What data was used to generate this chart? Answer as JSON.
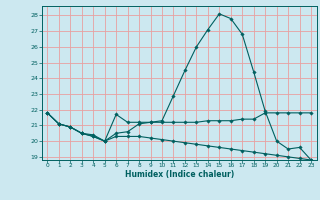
{
  "xlabel": "Humidex (Indice chaleur)",
  "bg_color": "#cce8f0",
  "grid_color": "#e8a0a0",
  "line_color": "#006060",
  "xlim": [
    -0.5,
    23.5
  ],
  "ylim": [
    18.8,
    28.6
  ],
  "yticks": [
    19,
    20,
    21,
    22,
    23,
    24,
    25,
    26,
    27,
    28
  ],
  "xticks": [
    0,
    1,
    2,
    3,
    4,
    5,
    6,
    7,
    8,
    9,
    10,
    11,
    12,
    13,
    14,
    15,
    16,
    17,
    18,
    19,
    20,
    21,
    22,
    23
  ],
  "line1_x": [
    0,
    1,
    2,
    3,
    4,
    5,
    6,
    7,
    8,
    9,
    10,
    11,
    12,
    13,
    14,
    15,
    16,
    17,
    18,
    19,
    20,
    21,
    22,
    23
  ],
  "line1_y": [
    21.8,
    21.1,
    20.9,
    20.5,
    20.4,
    20.0,
    21.7,
    21.2,
    21.2,
    21.2,
    21.3,
    22.9,
    24.5,
    26.0,
    27.1,
    28.1,
    27.8,
    26.8,
    24.4,
    21.9,
    20.0,
    19.5,
    19.6,
    18.8
  ],
  "line2_x": [
    0,
    1,
    2,
    3,
    4,
    5,
    6,
    7,
    8,
    9,
    10,
    11,
    12,
    13,
    14,
    15,
    16,
    17,
    18,
    19,
    20,
    21,
    22,
    23
  ],
  "line2_y": [
    21.8,
    21.1,
    20.9,
    20.5,
    20.3,
    20.0,
    20.5,
    20.6,
    21.1,
    21.2,
    21.2,
    21.2,
    21.2,
    21.2,
    21.3,
    21.3,
    21.3,
    21.4,
    21.4,
    21.8,
    21.8,
    21.8,
    21.8,
    21.8
  ],
  "line3_x": [
    0,
    1,
    2,
    3,
    4,
    5,
    6,
    7,
    8,
    9,
    10,
    11,
    12,
    13,
    14,
    15,
    16,
    17,
    18,
    19,
    20,
    21,
    22,
    23
  ],
  "line3_y": [
    21.8,
    21.1,
    20.9,
    20.5,
    20.3,
    20.0,
    20.3,
    20.3,
    20.3,
    20.2,
    20.1,
    20.0,
    19.9,
    19.8,
    19.7,
    19.6,
    19.5,
    19.4,
    19.3,
    19.2,
    19.1,
    19.0,
    18.9,
    18.8
  ]
}
